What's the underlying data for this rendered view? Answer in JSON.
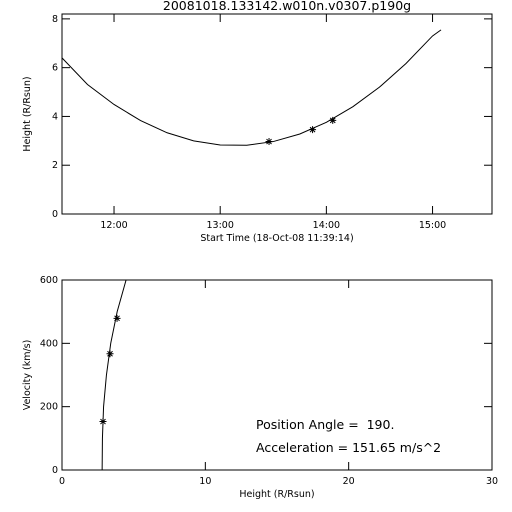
{
  "chart_data": [
    {
      "type": "line",
      "title": "20081018.133142.w010n.v0307.p190g",
      "x_label": "Start Time (18-Oct-08 11:39:14)",
      "y_label": "Height (R/Rsun)",
      "xlim": [
        11.51,
        15.56
      ],
      "ylim": [
        0,
        8.2
      ],
      "xticks": [
        {
          "value": 12,
          "label": "12:00"
        },
        {
          "value": 13,
          "label": "13:00"
        },
        {
          "value": 14,
          "label": "14:00"
        },
        {
          "value": 15,
          "label": "15:00"
        }
      ],
      "yticks": [
        0,
        2,
        4,
        6,
        8
      ],
      "series": [
        {
          "style": "line",
          "color": "#000000",
          "x": [
            11.51,
            11.75,
            12,
            12.25,
            12.5,
            12.75,
            13,
            13.25,
            13.5,
            13.75,
            14,
            14.25,
            14.5,
            14.75,
            15,
            15.08
          ],
          "values": [
            6.4,
            5.31,
            4.49,
            3.83,
            3.33,
            3.0,
            2.83,
            2.82,
            2.97,
            3.28,
            3.76,
            4.4,
            5.2,
            6.17,
            7.3,
            7.55
          ]
        },
        {
          "style": "star",
          "color": "#000000",
          "x": [
            13.46,
            13.87,
            14.06
          ],
          "values": [
            2.97,
            3.46,
            3.84
          ]
        }
      ]
    },
    {
      "type": "line",
      "x_label": "Height (R/Rsun)",
      "y_label": "Velocity (km/s)",
      "xlim": [
        0,
        30
      ],
      "ylim": [
        0,
        600
      ],
      "xticks": [
        0,
        10,
        20,
        30
      ],
      "yticks": [
        0,
        200,
        400,
        600
      ],
      "annotations": [
        "Position Angle =  190.",
        "Acceleration = 151.65 m/s^2"
      ],
      "series": [
        {
          "style": "line",
          "color": "#000000",
          "x": [
            2.8,
            2.82,
            2.9,
            3.1,
            3.4,
            3.85,
            4.47
          ],
          "values": [
            0,
            100,
            200,
            300,
            400,
            500,
            600
          ]
        },
        {
          "style": "star",
          "color": "#000000",
          "x": [
            2.86,
            3.35,
            3.84
          ],
          "values": [
            153,
            367,
            479
          ]
        }
      ]
    }
  ]
}
